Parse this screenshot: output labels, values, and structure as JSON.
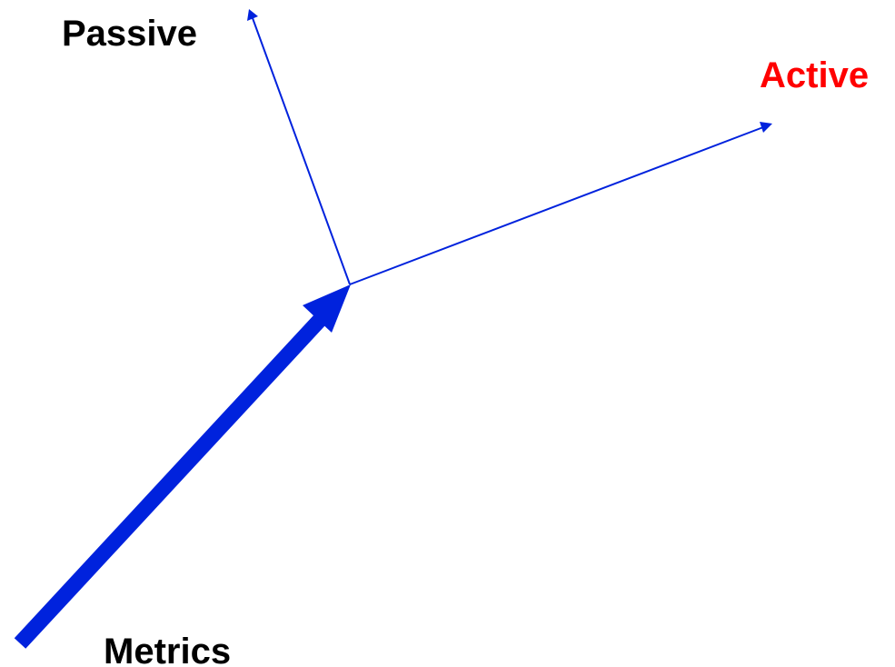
{
  "labels": {
    "passive": "Passive",
    "active": "Active",
    "metrics": "Metrics"
  },
  "colors": {
    "arrow": "#0022dd",
    "label_default": "#000000",
    "label_active": "#ff0000",
    "background": "#ffffff"
  }
}
